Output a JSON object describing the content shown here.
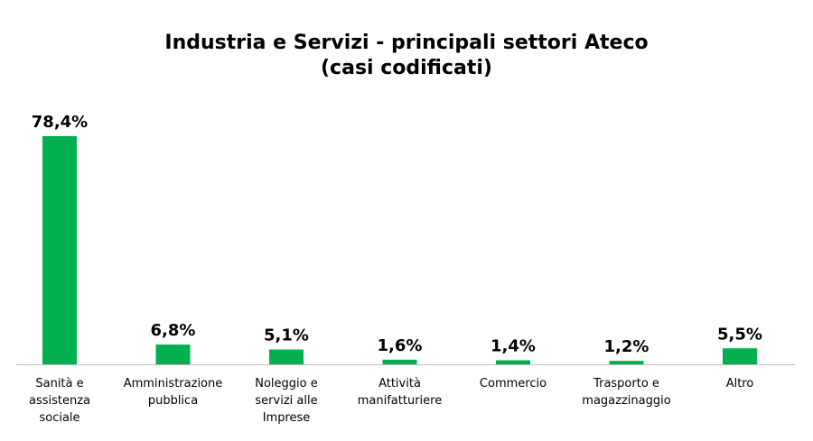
{
  "chart_data": {
    "type": "bar",
    "title": "Industria  e Servizi - principali  settori Ateco",
    "subtitle": "(casi codificati)",
    "categories": [
      [
        "Sanità e",
        "assistenza",
        "sociale"
      ],
      [
        "Amministrazione",
        "pubblica"
      ],
      [
        "Noleggio e",
        "servizi alle",
        "Imprese"
      ],
      [
        "Attività",
        "manifatturiere"
      ],
      [
        "Commercio"
      ],
      [
        "Trasporto e",
        "magazzinaggio"
      ],
      [
        "Altro"
      ]
    ],
    "values": [
      78.4,
      6.8,
      5.1,
      1.6,
      1.4,
      1.2,
      5.5
    ],
    "value_labels": [
      "78,4%",
      "6,8%",
      "5,1%",
      "1,6%",
      "1,4%",
      "1,2%",
      "5,5%"
    ],
    "bar_color": "#00b050",
    "axis_color": "#bfbfbf",
    "ylim": [
      0,
      78.4
    ],
    "grid": false,
    "legend": false
  }
}
